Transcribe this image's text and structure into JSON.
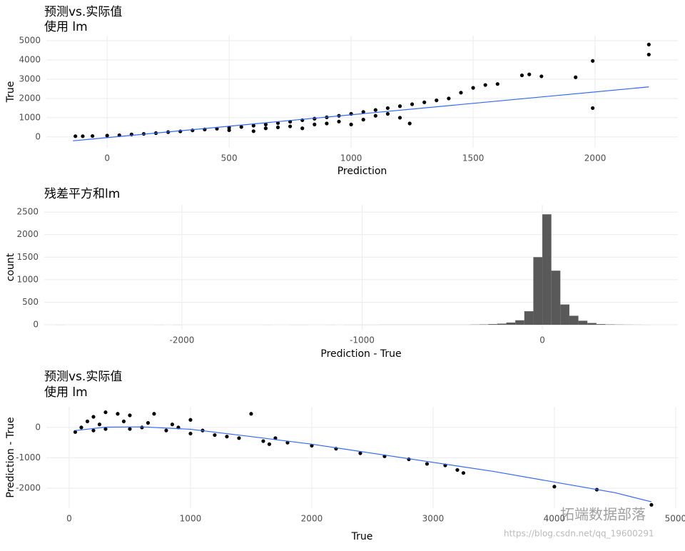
{
  "chart_data": [
    {
      "type": "scatter",
      "title": "预测vs.实际值",
      "subtitle": "使用 lm",
      "x_label": "Prediction",
      "y_label": "True",
      "x": [
        -130,
        -100,
        -60,
        0,
        50,
        100,
        150,
        200,
        250,
        300,
        350,
        400,
        450,
        500,
        550,
        600,
        650,
        700,
        750,
        800,
        850,
        900,
        950,
        1000,
        1050,
        1100,
        1150,
        1200,
        1250,
        1300,
        1350,
        1400,
        1450,
        1500,
        1550,
        1600,
        1700,
        1730,
        1780,
        1920,
        1990,
        1990,
        2220,
        2220,
        1240,
        1000,
        800,
        600,
        1200,
        1100,
        900,
        700,
        500,
        1150,
        1050,
        950,
        850,
        750,
        650
      ],
      "values": [
        40,
        40,
        50,
        70,
        90,
        130,
        160,
        200,
        250,
        290,
        340,
        390,
        430,
        480,
        520,
        590,
        650,
        720,
        790,
        870,
        950,
        1020,
        1100,
        1200,
        1300,
        1400,
        1500,
        1600,
        1700,
        1800,
        1900,
        2000,
        2300,
        2550,
        2700,
        2750,
        3200,
        3250,
        3150,
        3100,
        3950,
        1500,
        4800,
        4280,
        700,
        650,
        450,
        300,
        1000,
        1100,
        700,
        500,
        350,
        1200,
        900,
        800,
        650,
        550,
        450
      ],
      "color": "#000000",
      "fit": {
        "x": [
          -140,
          2220
        ],
        "y": [
          -200,
          2600
        ],
        "color": "#3366ff"
      },
      "xlim": [
        -249,
        2339
      ],
      "ylim": [
        -560,
        5260
      ],
      "xticks": [
        0,
        500,
        1000,
        1500,
        2000
      ],
      "yticks": [
        0,
        1000,
        2000,
        3000,
        4000,
        5000
      ],
      "grid": true
    },
    {
      "type": "histogram",
      "title": "残差平方和lm",
      "x_label": "Prediction - True",
      "y_label": "count",
      "bins": [
        -2700,
        -2650,
        -2600,
        -2550,
        -2500,
        -2450,
        -2400,
        -2350,
        -2300,
        -2250,
        -2200,
        -2150,
        -2100,
        -2050,
        -2000,
        -1950,
        -1900,
        -1850,
        -1800,
        -1750,
        -1700,
        -1650,
        -1600,
        -1550,
        -1500,
        -1450,
        -1400,
        -1350,
        -1300,
        -1250,
        -1200,
        -1150,
        -1100,
        -1050,
        -1000,
        -950,
        -900,
        -850,
        -800,
        -750,
        -700,
        -650,
        -600,
        -550,
        -500,
        -450,
        -400,
        -350,
        -300,
        -250,
        -200,
        -150,
        -100,
        -50,
        0,
        50,
        100,
        150,
        200,
        250,
        300,
        350,
        400,
        450,
        500,
        550,
        600
      ],
      "values": [
        1,
        0,
        0,
        0,
        0,
        0,
        0,
        0,
        0,
        0,
        0,
        1,
        0,
        1,
        0,
        0,
        0,
        0,
        0,
        0,
        0,
        0,
        0,
        1,
        0,
        0,
        1,
        1,
        0,
        0,
        1,
        0,
        1,
        1,
        1,
        1,
        2,
        2,
        2,
        2,
        2,
        2,
        2,
        2,
        2,
        2,
        5,
        8,
        15,
        25,
        50,
        100,
        300,
        1500,
        2450,
        1200,
        450,
        200,
        90,
        40,
        15,
        8,
        5,
        3,
        2,
        1
      ],
      "color": "#595959",
      "xlim": [
        -2764,
        752
      ],
      "ylim": [
        -110,
        2660
      ],
      "xticks": [
        -2000,
        -1000,
        0
      ],
      "yticks": [
        0,
        500,
        1000,
        1500,
        2000,
        2500
      ],
      "grid": true
    },
    {
      "type": "scatter",
      "title": "预测vs.实际值",
      "subtitle": "使用 lm",
      "x_label": "True",
      "y_label": "Prediction - True",
      "x": [
        50,
        100,
        150,
        200,
        300,
        400,
        500,
        700,
        1000,
        1500,
        200,
        500,
        800,
        1000,
        1200,
        1400,
        1600,
        1800,
        2000,
        2200,
        2400,
        2600,
        2800,
        2950,
        3100,
        3200,
        3250,
        4000,
        4350,
        4800,
        1700,
        1650,
        300,
        600,
        900,
        1300,
        250,
        450,
        650,
        850,
        1100
      ],
      "values": [
        -150,
        0,
        200,
        350,
        500,
        450,
        400,
        450,
        250,
        450,
        -100,
        -50,
        -100,
        -200,
        -250,
        -350,
        -450,
        -500,
        -600,
        -700,
        -850,
        -950,
        -1050,
        -1200,
        -1250,
        -1400,
        -1500,
        -1950,
        -2050,
        -2550,
        -350,
        -550,
        -50,
        0,
        0,
        -300,
        100,
        200,
        150,
        100,
        -100
      ],
      "color": "#000000",
      "fit": {
        "x": [
          50,
          300,
          600,
          1000,
          1500,
          2000,
          2500,
          3000,
          3500,
          4000,
          4500,
          4800
        ],
        "y": [
          -100,
          10,
          20,
          -60,
          -300,
          -550,
          -850,
          -1150,
          -1450,
          -1800,
          -2150,
          -2450
        ],
        "color": "#3366ff"
      },
      "xlim": [
        -188,
        5018
      ],
      "ylim": [
        -2660,
        680
      ],
      "xticks": [
        0,
        1000,
        2000,
        3000,
        4000,
        5000
      ],
      "yticks": [
        -2000,
        -1000,
        0
      ],
      "grid": true
    }
  ],
  "watermark": {
    "brand": "拓端数据部落",
    "url": "https://blog.csdn.net/qq_19600291"
  }
}
